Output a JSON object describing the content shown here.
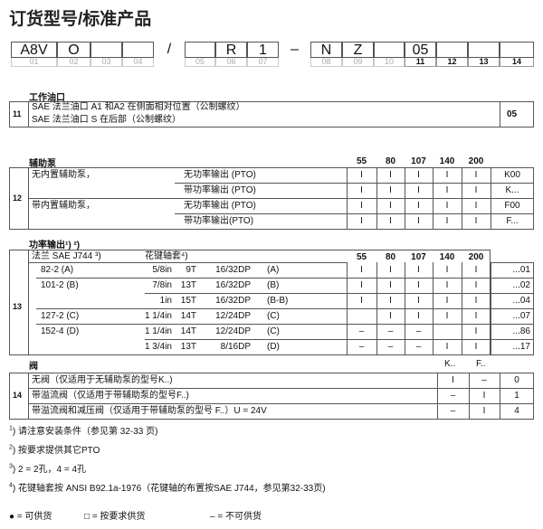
{
  "title": "订货型号/标准产品",
  "code_boxes": [
    {
      "value": "A8V",
      "label": "01"
    },
    {
      "value": "O",
      "label": "02"
    },
    {
      "value": "",
      "label": "03"
    },
    {
      "value": "",
      "label": "04"
    },
    {
      "value": "/",
      "label": ""
    },
    {
      "value": "",
      "label": "05"
    },
    {
      "value": "R",
      "label": "06"
    },
    {
      "value": "1",
      "label": "07"
    },
    {
      "value": "–",
      "label": ""
    },
    {
      "value": "N",
      "label": "08"
    },
    {
      "value": "Z",
      "label": "09"
    },
    {
      "value": "",
      "label": "10"
    },
    {
      "value": "05",
      "label": "11"
    },
    {
      "value": "",
      "label": "12"
    },
    {
      "value": "",
      "label": "13"
    },
    {
      "value": "",
      "label": "14"
    }
  ],
  "sec11": {
    "title": "工作油口",
    "num": "11",
    "lines": [
      "SAE 法兰油口 A1 和A2 在侧面相对位置（公制螺纹）",
      "SAE 法兰油口 S 在后部（公制螺纹）"
    ],
    "code": "05"
  },
  "sec12": {
    "title": "辅助泵",
    "num": "12",
    "sizes": [
      "55",
      "80",
      "107",
      "140",
      "200"
    ],
    "groups": [
      "无内置辅助泵，",
      "带内置辅助泵，"
    ],
    "rows": [
      {
        "pto": "无功率输出 (PTO)",
        "avail": [
          "I",
          "I",
          "I",
          "I",
          "I"
        ],
        "code": "K00"
      },
      {
        "pto": "带功率输出 (PTO)",
        "avail": [
          "I",
          "I",
          "I",
          "I",
          "I"
        ],
        "code": "K..."
      },
      {
        "pto": "无功率输出 (PTO)",
        "avail": [
          "I",
          "I",
          "I",
          "I",
          "I"
        ],
        "code": "F00"
      },
      {
        "pto": "带功率输出(PTO)",
        "avail": [
          "I",
          "I",
          "I",
          "I",
          "I"
        ],
        "code": "F..."
      }
    ]
  },
  "sec13": {
    "title": "功率输出¹) ²)",
    "num": "13",
    "col_flange": "法兰 SAE J744 ³)",
    "col_spline": "花键轴套⁴)",
    "sizes": [
      "55",
      "80",
      "107",
      "140",
      "200"
    ],
    "rows": [
      {
        "flange": "82-2 (A)",
        "d": "5/8in",
        "t": "9T",
        "dp": "16/32DP",
        "s": "(A)",
        "avail": [
          "I",
          "I",
          "I",
          "I",
          "I"
        ],
        "code": "...01"
      },
      {
        "flange": "101-2 (B)",
        "d": "7/8in",
        "t": "13T",
        "dp": "16/32DP",
        "s": "(B)",
        "avail": [
          "I",
          "I",
          "I",
          "I",
          "I"
        ],
        "code": "...02"
      },
      {
        "flange": "",
        "d": "1in",
        "t": "15T",
        "dp": "16/32DP",
        "s": "(B-B)",
        "avail": [
          "I",
          "I",
          "I",
          "I",
          "I"
        ],
        "code": "...04"
      },
      {
        "flange": "127-2 (C)",
        "d": "1 1/4in",
        "t": "14T",
        "dp": "12/24DP",
        "s": "(C)",
        "avail": [
          "",
          "I",
          "I",
          "I",
          "I"
        ],
        "code": "...07"
      },
      {
        "flange": "152-4 (D)",
        "d": "1 1/4in",
        "t": "14T",
        "dp": "12/24DP",
        "s": "(C)",
        "avail": [
          "–",
          "–",
          "–",
          "",
          "I"
        ],
        "code": "...86"
      },
      {
        "flange": "",
        "d": "1 3/4in",
        "t": "13T",
        "dp": "8/16DP",
        "s": "(D)",
        "avail": [
          "–",
          "–",
          "–",
          "I",
          "I"
        ],
        "code": "...17"
      }
    ]
  },
  "sec14": {
    "title": "阀",
    "num": "14",
    "cols": [
      "K..",
      "F.."
    ],
    "rows": [
      {
        "text": "无阀（仅适用于无辅助泵的型号K..)",
        "avail": [
          "I",
          "–"
        ],
        "code": "0"
      },
      {
        "text": "带溢流阀（仅适用于带辅助泵的型号F..)",
        "avail": [
          "–",
          "I"
        ],
        "code": "1"
      },
      {
        "text": "带溢流阀和减压阀（仅适用于带辅助泵的型号 F..）U = 24V",
        "avail": [
          "–",
          "I"
        ],
        "code": "4"
      }
    ]
  },
  "footnotes": [
    {
      "sup": "1",
      "text": ") 请注意安装条件（参见第 32-33 页)"
    },
    {
      "sup": "2",
      "text": ") 按要求提供其它PTO"
    },
    {
      "sup": "3",
      "text": ") 2 = 2孔，4 = 4孔"
    },
    {
      "sup": "4",
      "text": ") 花键轴套按 ANSI B92.1a-1976（花键轴的布置按SAE J744，参见第32-33页)"
    }
  ],
  "legend": [
    "● = 可供货",
    "□ = 按要求供货",
    "– = 不可供货"
  ]
}
